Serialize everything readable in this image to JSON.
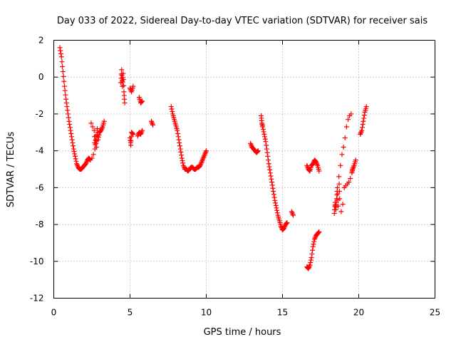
{
  "chart_data": {
    "type": "scatter",
    "title": "Day 033 of 2022, Sidereal Day-to-day VTEC variation (SDTVAR) for receiver sais",
    "xlabel": "GPS time / hours",
    "ylabel": "SDTVAR / TECUs",
    "xlim": [
      0,
      25
    ],
    "ylim": [
      -12,
      2
    ],
    "xticks": [
      0,
      5,
      10,
      15,
      20,
      25
    ],
    "yticks": [
      2,
      0,
      -2,
      -4,
      -6,
      -8,
      -10,
      -12
    ],
    "grid": true,
    "marker": "plus",
    "color": "#ff0000",
    "segments": [
      [
        [
          0.4,
          1.6
        ],
        [
          0.5,
          1.1
        ],
        [
          0.6,
          0.3
        ],
        [
          0.7,
          -0.5
        ],
        [
          0.8,
          -1.2
        ],
        [
          0.9,
          -1.8
        ],
        [
          1.0,
          -2.4
        ],
        [
          1.1,
          -2.9
        ],
        [
          1.2,
          -3.4
        ],
        [
          1.3,
          -3.9
        ],
        [
          1.4,
          -4.3
        ],
        [
          1.5,
          -4.7
        ],
        [
          1.6,
          -4.9
        ],
        [
          1.7,
          -5.0
        ],
        [
          1.8,
          -5.0
        ],
        [
          1.9,
          -4.9
        ],
        [
          2.0,
          -4.8
        ],
        [
          2.1,
          -4.7
        ],
        [
          2.2,
          -4.5
        ],
        [
          2.3,
          -4.4
        ],
        [
          2.4,
          -4.5
        ],
        [
          2.45,
          -2.5
        ],
        [
          2.5,
          -4.4
        ],
        [
          2.55,
          -2.7
        ],
        [
          2.6,
          -4.2
        ],
        [
          2.65,
          -2.9
        ],
        [
          2.7,
          -3.9
        ],
        [
          2.75,
          -3.2
        ],
        [
          2.8,
          -3.8
        ],
        [
          2.85,
          -2.8
        ],
        [
          2.9,
          -3.4
        ],
        [
          3.0,
          -3.0
        ],
        [
          3.1,
          -2.9
        ],
        [
          3.2,
          -2.7
        ],
        [
          3.3,
          -2.4
        ]
      ],
      [
        [
          4.4,
          -0.3
        ],
        [
          4.45,
          0.4
        ],
        [
          4.5,
          -0.5
        ],
        [
          4.55,
          0.2
        ],
        [
          4.6,
          -0.8
        ],
        [
          4.65,
          -1.4
        ],
        [
          5.0,
          -0.6
        ],
        [
          5.1,
          -0.8
        ],
        [
          5.2,
          -0.5
        ],
        [
          5.0,
          -3.3
        ],
        [
          5.05,
          -3.7
        ],
        [
          5.1,
          -3.0
        ],
        [
          5.2,
          -3.1
        ],
        [
          5.6,
          -1.1
        ],
        [
          5.7,
          -1.4
        ],
        [
          5.8,
          -1.3
        ],
        [
          5.5,
          -3.2
        ],
        [
          5.6,
          -3.0
        ],
        [
          5.7,
          -3.1
        ],
        [
          5.8,
          -2.9
        ],
        [
          6.4,
          -2.4
        ],
        [
          6.5,
          -2.6
        ]
      ],
      [
        [
          7.7,
          -1.6
        ],
        [
          7.8,
          -2.0
        ],
        [
          7.9,
          -2.3
        ],
        [
          8.0,
          -2.6
        ],
        [
          8.1,
          -2.9
        ],
        [
          8.2,
          -3.4
        ],
        [
          8.3,
          -3.9
        ],
        [
          8.4,
          -4.4
        ],
        [
          8.5,
          -4.8
        ],
        [
          8.6,
          -5.0
        ],
        [
          8.7,
          -5.0
        ],
        [
          8.8,
          -5.1
        ],
        [
          8.9,
          -5.0
        ],
        [
          9.0,
          -4.9
        ],
        [
          9.1,
          -4.9
        ],
        [
          9.2,
          -5.0
        ],
        [
          9.3,
          -5.0
        ],
        [
          9.4,
          -4.9
        ],
        [
          9.5,
          -4.9
        ],
        [
          9.6,
          -4.8
        ],
        [
          9.7,
          -4.6
        ],
        [
          9.8,
          -4.4
        ],
        [
          9.9,
          -4.2
        ],
        [
          10.0,
          -4.0
        ]
      ],
      [
        [
          12.9,
          -3.6
        ],
        [
          13.0,
          -3.8
        ],
        [
          13.1,
          -3.9
        ],
        [
          13.2,
          -4.0
        ],
        [
          13.3,
          -4.1
        ],
        [
          13.4,
          -4.0
        ],
        [
          13.6,
          -2.1
        ],
        [
          13.65,
          -2.5
        ],
        [
          13.7,
          -2.7
        ],
        [
          13.8,
          -3.1
        ],
        [
          13.9,
          -3.5
        ],
        [
          14.0,
          -4.1
        ],
        [
          14.1,
          -4.7
        ],
        [
          14.2,
          -5.2
        ],
        [
          14.3,
          -5.7
        ],
        [
          14.4,
          -6.2
        ],
        [
          14.5,
          -6.7
        ],
        [
          14.6,
          -7.1
        ],
        [
          14.7,
          -7.5
        ],
        [
          14.8,
          -7.8
        ],
        [
          14.9,
          -8.1
        ],
        [
          15.0,
          -8.3
        ],
        [
          15.1,
          -8.2
        ],
        [
          15.2,
          -8.0
        ],
        [
          15.3,
          -7.9
        ],
        [
          15.6,
          -7.3
        ],
        [
          15.7,
          -7.5
        ]
      ],
      [
        [
          16.6,
          -10.3
        ],
        [
          16.7,
          -10.4
        ],
        [
          16.8,
          -10.2
        ],
        [
          16.9,
          -9.8
        ],
        [
          17.0,
          -9.2
        ],
        [
          17.1,
          -8.8
        ],
        [
          17.2,
          -8.6
        ],
        [
          17.3,
          -8.5
        ],
        [
          17.4,
          -8.4
        ],
        [
          16.6,
          -4.8
        ],
        [
          16.7,
          -5.0
        ],
        [
          16.8,
          -5.1
        ],
        [
          16.9,
          -4.8
        ],
        [
          17.0,
          -4.7
        ],
        [
          17.1,
          -4.5
        ],
        [
          17.2,
          -4.6
        ],
        [
          17.3,
          -4.8
        ],
        [
          17.4,
          -5.1
        ]
      ],
      [
        [
          18.4,
          -7.4
        ],
        [
          18.45,
          -6.8
        ],
        [
          18.5,
          -7.2
        ],
        [
          18.55,
          -6.6
        ],
        [
          18.6,
          -6.0
        ],
        [
          18.65,
          -7.0
        ],
        [
          18.7,
          -5.4
        ],
        [
          18.75,
          -6.6
        ],
        [
          18.8,
          -4.8
        ],
        [
          18.85,
          -7.3
        ],
        [
          18.9,
          -4.2
        ],
        [
          18.95,
          -6.9
        ],
        [
          19.0,
          -3.8
        ],
        [
          19.05,
          -6.0
        ],
        [
          19.1,
          -3.3
        ],
        [
          19.15,
          -5.9
        ],
        [
          19.2,
          -2.7
        ],
        [
          19.25,
          -5.8
        ],
        [
          19.3,
          -2.3
        ],
        [
          19.35,
          -5.7
        ],
        [
          19.4,
          -2.1
        ],
        [
          19.45,
          -5.5
        ],
        [
          19.5,
          -2.0
        ],
        [
          19.55,
          -5.2
        ],
        [
          19.6,
          -5.0
        ],
        [
          19.7,
          -4.8
        ],
        [
          19.8,
          -4.5
        ],
        [
          20.1,
          -3.1
        ],
        [
          20.2,
          -2.9
        ],
        [
          20.3,
          -2.4
        ],
        [
          20.4,
          -1.9
        ],
        [
          20.5,
          -1.6
        ]
      ]
    ]
  }
}
